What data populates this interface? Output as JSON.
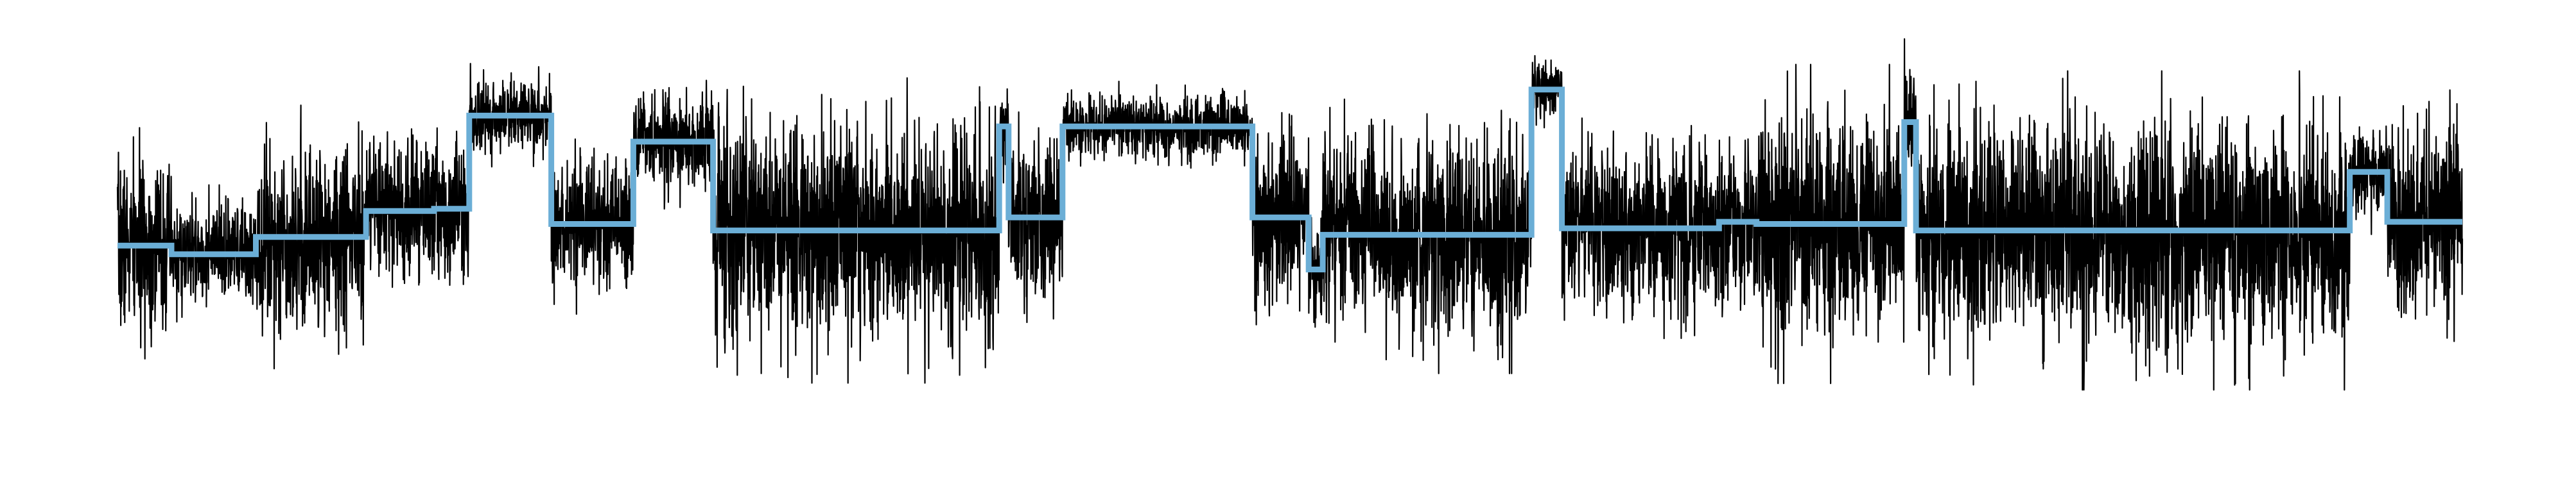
{
  "chart_data": {
    "type": "line",
    "title": "",
    "xlabel": "",
    "ylabel": "",
    "axes_visible": false,
    "grid": false,
    "legend": "none",
    "xlim": [
      0,
      10000
    ],
    "ylim": [
      -5.3,
      4.8
    ],
    "series": [
      {
        "name": "signal",
        "color": "#000000",
        "kind": "noisy_trace",
        "samples": 10000,
        "seed": 7
      },
      {
        "name": "segment_means",
        "color": "#6baed6",
        "kind": "step",
        "segments": [
          {
            "start": 0,
            "end": 230,
            "mean": -0.35,
            "amp": 1.7
          },
          {
            "start": 230,
            "end": 590,
            "mean": -0.55,
            "amp": 1.0
          },
          {
            "start": 590,
            "end": 1060,
            "mean": -0.15,
            "amp": 1.9
          },
          {
            "start": 1060,
            "end": 1350,
            "mean": 0.45,
            "amp": 1.4
          },
          {
            "start": 1350,
            "end": 1500,
            "mean": 0.5,
            "amp": 1.6
          },
          {
            "start": 1500,
            "end": 1850,
            "mean": 2.65,
            "amp": 0.75
          },
          {
            "start": 1850,
            "end": 2200,
            "mean": 0.15,
            "amp": 1.3
          },
          {
            "start": 2200,
            "end": 2540,
            "mean": 2.05,
            "amp": 1.0
          },
          {
            "start": 2540,
            "end": 3760,
            "mean": 0.0,
            "amp": 2.2
          },
          {
            "start": 3760,
            "end": 3800,
            "mean": 2.4,
            "amp": 1.0
          },
          {
            "start": 3800,
            "end": 4030,
            "mean": 0.3,
            "amp": 1.6
          },
          {
            "start": 4030,
            "end": 4840,
            "mean": 2.4,
            "amp": 0.65
          },
          {
            "start": 4840,
            "end": 5080,
            "mean": 0.3,
            "amp": 1.8
          },
          {
            "start": 5080,
            "end": 5140,
            "mean": -0.9,
            "amp": 1.0
          },
          {
            "start": 5140,
            "end": 6030,
            "mean": -0.1,
            "amp": 2.0
          },
          {
            "start": 6030,
            "end": 6160,
            "mean": 3.25,
            "amp": 0.55
          },
          {
            "start": 6160,
            "end": 6830,
            "mean": 0.05,
            "amp": 1.7
          },
          {
            "start": 6830,
            "end": 6990,
            "mean": 0.2,
            "amp": 1.6
          },
          {
            "start": 6990,
            "end": 7620,
            "mean": 0.15,
            "amp": 2.3
          },
          {
            "start": 7620,
            "end": 7670,
            "mean": 2.5,
            "amp": 1.2
          },
          {
            "start": 7670,
            "end": 9520,
            "mean": 0.0,
            "amp": 2.3
          },
          {
            "start": 9520,
            "end": 9680,
            "mean": 1.35,
            "amp": 0.9
          },
          {
            "start": 9680,
            "end": 10000,
            "mean": 0.2,
            "amp": 1.9
          }
        ]
      }
    ]
  }
}
